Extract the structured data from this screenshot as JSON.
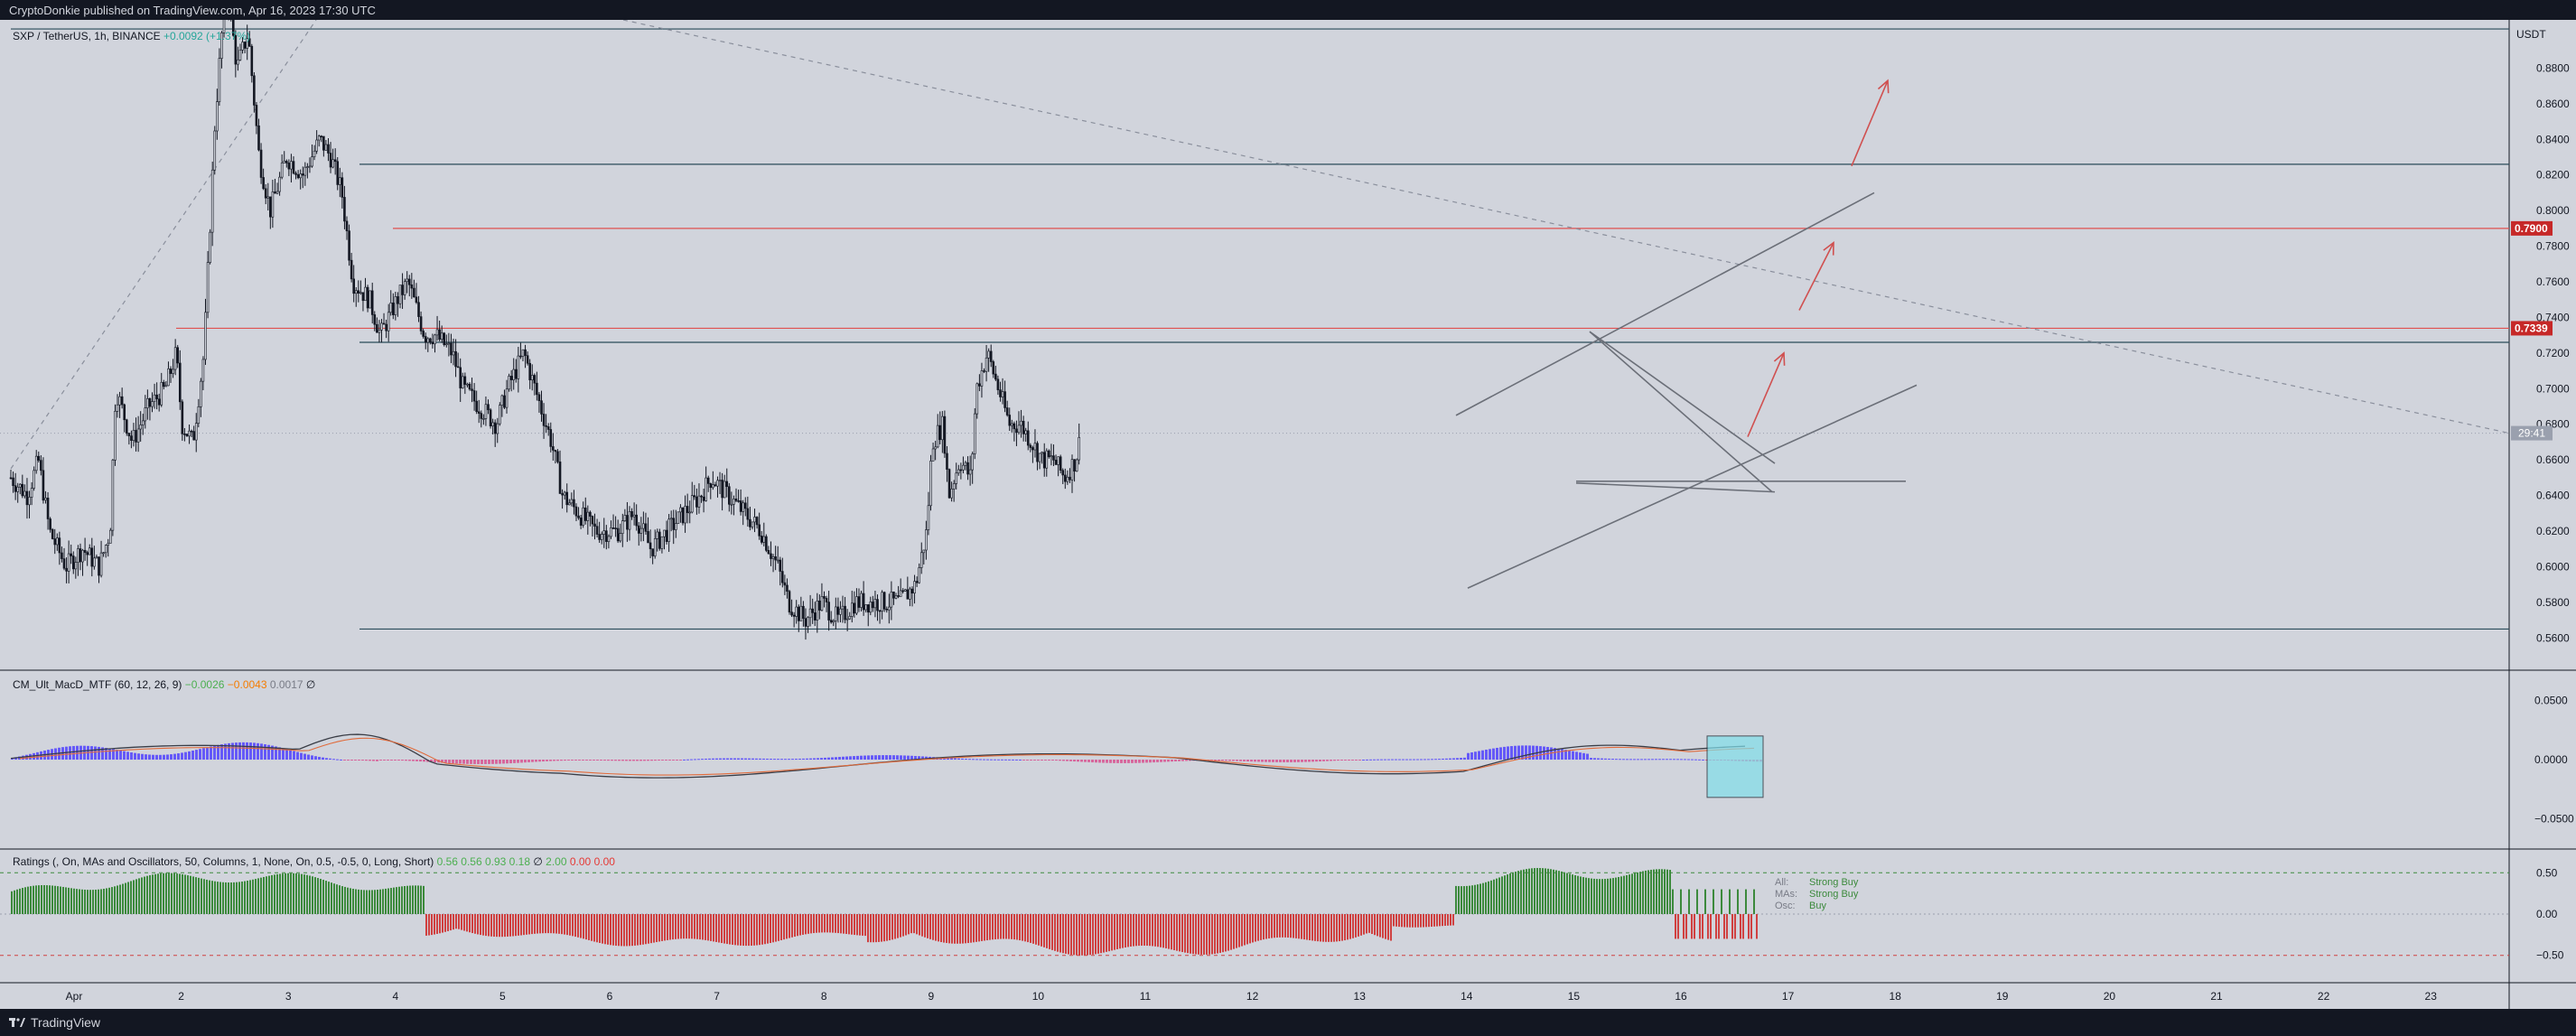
{
  "header": {
    "published": "CryptoDonkie published on TradingView.com, Apr 16, 2023 17:30 UTC"
  },
  "footer": {
    "brand": "TradingView"
  },
  "colors": {
    "background": "#d1d4dc",
    "frame": "#131722",
    "up": "#131722",
    "red_line": "#e05050",
    "macd_blue": "#4a3aff",
    "macd_pink": "#d84a8c",
    "rating_green": "#3c8a3c",
    "rating_red": "#d04040"
  },
  "main": {
    "symbol": "SXP / TetherUS, 1h, BINANCE",
    "change": "+0.0092 (+1.37%)",
    "currency": "USDT",
    "countdown": "29:41",
    "price_tag_1": "0.7900",
    "price_tag_2": "0.7339"
  },
  "macd": {
    "name": "CM_Ult_MacD_MTF (60, 12, 26, 9)",
    "v1": "−0.0026",
    "v2": "−0.0043",
    "v3": "0.0017",
    "v4": "∅"
  },
  "ratings": {
    "name": "Ratings (, On, MAs and Oscillators, 50, Columns, 1, None, On, 0.5, -0.5, 0, Long, Short)",
    "v1": "0.56",
    "v2": "0.56",
    "v3": "0.93",
    "v4": "0.18",
    "v5": "∅",
    "v6": "2.00",
    "v7": "0.00",
    "v8": "0.00",
    "rows": [
      {
        "key": "All:",
        "value": "Strong Buy"
      },
      {
        "key": "MAs:",
        "value": "Strong Buy"
      },
      {
        "key": "Osc:",
        "value": "Buy"
      }
    ]
  },
  "chart_data": [
    {
      "type": "candlestick",
      "title": "SXP / TetherUS, 1h, BINANCE",
      "ylim": [
        0.55,
        0.9
      ],
      "yticks": [
        "0.8800",
        "0.8600",
        "0.8400",
        "0.8200",
        "0.8000",
        "0.7800",
        "0.7600",
        "0.7400",
        "0.7200",
        "0.7000",
        "0.6800",
        "0.6600",
        "0.6400",
        "0.6200",
        "0.6000",
        "0.5800",
        "0.5600"
      ],
      "xticks": [
        "Apr",
        "2",
        "3",
        "4",
        "5",
        "6",
        "7",
        "8",
        "9",
        "10",
        "11",
        "12",
        "13",
        "14",
        "15",
        "16",
        "17",
        "18",
        "19",
        "20",
        "21",
        "22",
        "23"
      ],
      "horizontal_lines": [
        0.902,
        0.826,
        0.79,
        0.7339,
        0.726,
        0.565
      ],
      "price_path": [
        [
          0.0,
          0.65
        ],
        [
          0.03,
          0.64
        ],
        [
          0.05,
          0.66
        ],
        [
          0.07,
          0.62
        ],
        [
          0.1,
          0.6
        ],
        [
          0.13,
          0.61
        ],
        [
          0.16,
          0.6
        ],
        [
          0.18,
          0.62
        ],
        [
          0.19,
          0.7
        ],
        [
          0.22,
          0.67
        ],
        [
          0.25,
          0.69
        ],
        [
          0.28,
          0.7
        ],
        [
          0.3,
          0.72
        ],
        [
          0.31,
          0.68
        ],
        [
          0.33,
          0.67
        ],
        [
          0.35,
          0.72
        ],
        [
          0.37,
          0.85
        ],
        [
          0.39,
          0.93
        ],
        [
          0.41,
          0.88
        ],
        [
          0.43,
          0.9
        ],
        [
          0.45,
          0.83
        ],
        [
          0.47,
          0.8
        ],
        [
          0.5,
          0.83
        ],
        [
          0.53,
          0.82
        ],
        [
          0.56,
          0.84
        ],
        [
          0.58,
          0.83
        ],
        [
          0.6,
          0.81
        ],
        [
          0.62,
          0.76
        ],
        [
          0.65,
          0.75
        ],
        [
          0.67,
          0.73
        ],
        [
          0.7,
          0.75
        ],
        [
          0.72,
          0.76
        ],
        [
          0.75,
          0.73
        ],
        [
          0.77,
          0.73
        ],
        [
          0.8,
          0.72
        ],
        [
          0.82,
          0.7
        ],
        [
          0.85,
          0.69
        ],
        [
          0.88,
          0.68
        ],
        [
          0.9,
          0.7
        ],
        [
          0.93,
          0.72
        ],
        [
          0.95,
          0.7
        ],
        [
          0.98,
          0.67
        ],
        [
          1.0,
          0.64
        ],
        [
          1.03,
          0.63
        ],
        [
          1.06,
          0.62
        ],
        [
          1.1,
          0.62
        ],
        [
          1.13,
          0.63
        ],
        [
          1.16,
          0.61
        ],
        [
          1.19,
          0.62
        ],
        [
          1.22,
          0.63
        ],
        [
          1.25,
          0.64
        ],
        [
          1.27,
          0.65
        ],
        [
          1.3,
          0.64
        ],
        [
          1.33,
          0.63
        ],
        [
          1.36,
          0.62
        ],
        [
          1.39,
          0.6
        ],
        [
          1.41,
          0.58
        ],
        [
          1.44,
          0.57
        ],
        [
          1.47,
          0.58
        ],
        [
          1.5,
          0.57
        ],
        [
          1.53,
          0.58
        ],
        [
          1.56,
          0.58
        ],
        [
          1.59,
          0.58
        ],
        [
          1.61,
          0.58
        ],
        [
          1.64,
          0.59
        ],
        [
          1.66,
          0.62
        ],
        [
          1.67,
          0.67
        ],
        [
          1.69,
          0.68
        ],
        [
          1.7,
          0.64
        ],
        [
          1.72,
          0.66
        ],
        [
          1.74,
          0.65
        ],
        [
          1.75,
          0.7
        ],
        [
          1.77,
          0.72
        ],
        [
          1.79,
          0.7
        ],
        [
          1.81,
          0.68
        ],
        [
          1.83,
          0.68
        ],
        [
          1.85,
          0.67
        ],
        [
          1.87,
          0.66
        ],
        [
          1.89,
          0.66
        ],
        [
          1.91,
          0.65
        ],
        [
          1.93,
          0.66
        ],
        [
          1.94,
          0.675
        ]
      ]
    },
    {
      "type": "line",
      "title": "CM_Ult_MacD_MTF (60, 12, 26, 9)",
      "ylim": [
        -0.065,
        0.065
      ],
      "yticks": [
        "0.0500",
        "0.0000",
        "−0.0500"
      ]
    },
    {
      "type": "bar",
      "title": "Ratings",
      "ylim": [
        -0.7,
        0.7
      ],
      "yticks": [
        "0.50",
        "0.00",
        "−0.50"
      ]
    }
  ]
}
